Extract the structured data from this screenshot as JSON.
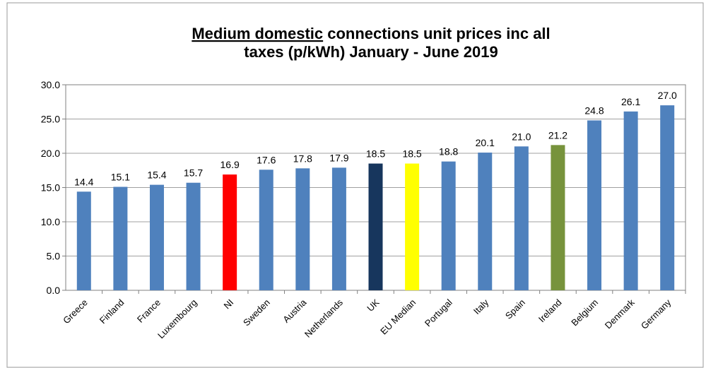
{
  "chart_data": {
    "type": "bar",
    "title": [
      "Medium domestic",
      " connections unit prices inc all",
      "taxes (p/kWh)  January - June 2019"
    ],
    "categories": [
      "Greece",
      "Finland",
      "France",
      "Luxembourg",
      "NI",
      "Sweden",
      "Austria",
      "Netherlands",
      "UK",
      "EU Median",
      "Portugal",
      "Italy",
      "Spain",
      "Ireland",
      "Belgium",
      "Denmark",
      "Germany"
    ],
    "values": [
      14.4,
      15.1,
      15.4,
      15.7,
      16.9,
      17.6,
      17.8,
      17.9,
      18.5,
      18.5,
      18.8,
      20.1,
      21.0,
      21.2,
      24.8,
      26.1,
      27.0
    ],
    "value_labels": [
      "14.4",
      "15.1",
      "15.4",
      "15.7",
      "16.9",
      "17.6",
      "17.8",
      "17.9",
      "18.5",
      "18.5",
      "18.8",
      "20.1",
      "21.0",
      "21.2",
      "24.8",
      "26.1",
      "27.0"
    ],
    "colors": [
      "#4f81bd",
      "#4f81bd",
      "#4f81bd",
      "#4f81bd",
      "#ff0000",
      "#4f81bd",
      "#4f81bd",
      "#4f81bd",
      "#17365d",
      "#ffff00",
      "#4f81bd",
      "#4f81bd",
      "#4f81bd",
      "#77933c",
      "#4f81bd",
      "#4f81bd",
      "#4f81bd"
    ],
    "ylim": [
      0,
      30
    ],
    "yticks": [
      {
        "value": 0,
        "label": "0.0"
      },
      {
        "value": 5,
        "label": "5.0"
      },
      {
        "value": 10,
        "label": "10.0"
      },
      {
        "value": 15,
        "label": "15.0"
      },
      {
        "value": 20,
        "label": "20.0"
      },
      {
        "value": 25,
        "label": "25.0"
      },
      {
        "value": 30,
        "label": "30.0"
      }
    ],
    "grid": true
  }
}
